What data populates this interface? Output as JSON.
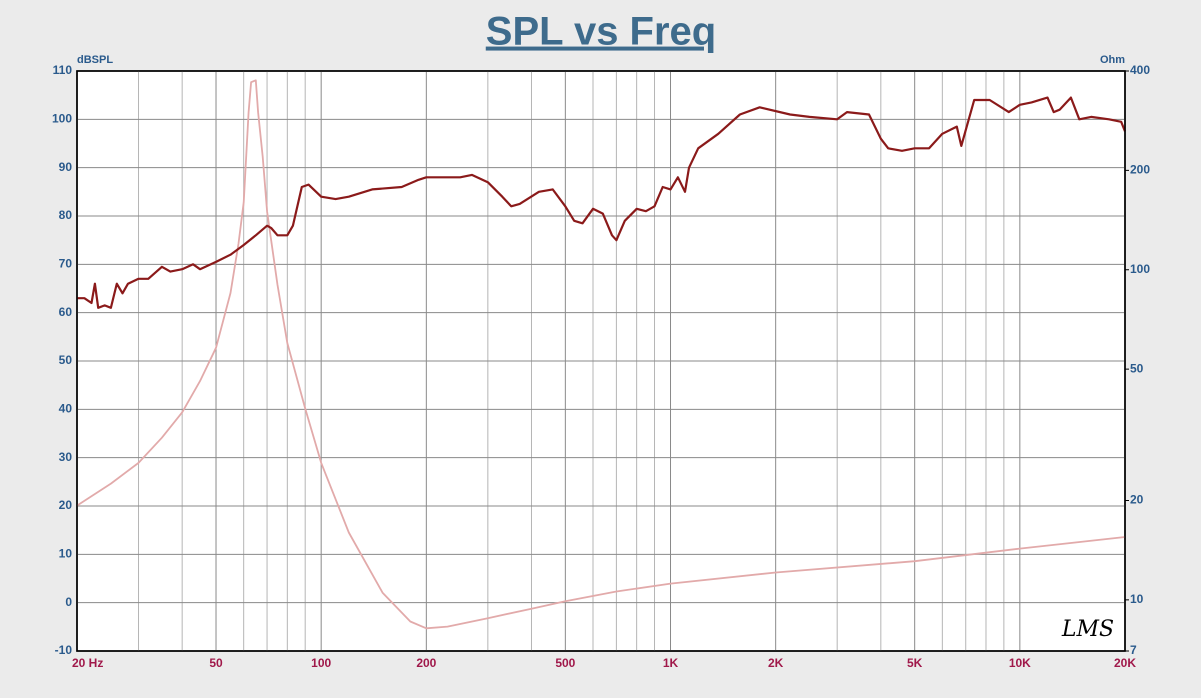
{
  "chart_data": {
    "type": "line",
    "title": "SPL vs Freq",
    "y_label": "dBSPL",
    "y2_label": "Ohm",
    "annotation": "LMS",
    "xscale": "log",
    "y2scale": "log",
    "grid": true,
    "xlim": [
      20,
      20000
    ],
    "xticks": [
      {
        "value": 20,
        "label": "20  Hz"
      },
      50,
      100,
      200,
      500,
      {
        "value": 1000,
        "label": "1K"
      },
      {
        "value": 2000,
        "label": "2K"
      },
      {
        "value": 5000,
        "label": "5K"
      },
      {
        "value": 10000,
        "label": "10K"
      },
      {
        "value": 20000,
        "label": "20K"
      }
    ],
    "xminorticks": [
      30,
      40,
      60,
      70,
      80,
      90,
      300,
      400,
      600,
      700,
      800,
      900,
      3000,
      4000,
      6000,
      7000,
      8000,
      9000
    ],
    "ylim": [
      -10,
      110
    ],
    "yticks": [
      -10,
      0,
      10,
      20,
      30,
      40,
      50,
      60,
      70,
      80,
      90,
      100,
      110
    ],
    "y2lim": [
      7,
      400
    ],
    "y2ticks": [
      7,
      10,
      20,
      50,
      100,
      200,
      400
    ],
    "series": [
      {
        "color": "#e2aaaa",
        "axis": "y2",
        "x": [
          20,
          25,
          30,
          35,
          40,
          45,
          50,
          55,
          58,
          60,
          62,
          63,
          65,
          66,
          68,
          70,
          75,
          80,
          90,
          100,
          120,
          150,
          180,
          200,
          230,
          300,
          400,
          500,
          700,
          1000,
          2000,
          5000,
          10000,
          20000
        ],
        "values": [
          19.3,
          22.5,
          26,
          31,
          37,
          46,
          58,
          85,
          120,
          160,
          300,
          370,
          375,
          300,
          220,
          150,
          90,
          60,
          38,
          26,
          16,
          10.5,
          8.6,
          8.2,
          8.3,
          8.8,
          9.4,
          9.9,
          10.6,
          11.2,
          12.1,
          13.1,
          14.3,
          15.5
        ]
      },
      {
        "color": "#8b1a1a",
        "axis": "y",
        "x": [
          20,
          21,
          22,
          22.5,
          23,
          24,
          25,
          26,
          27,
          28,
          30,
          32,
          35,
          37,
          40,
          43,
          45,
          50,
          55,
          60,
          65,
          70,
          72,
          75,
          80,
          83,
          88,
          92,
          100,
          110,
          120,
          140,
          170,
          190,
          200,
          230,
          250,
          270,
          300,
          330,
          350,
          370,
          420,
          460,
          500,
          530,
          560,
          600,
          640,
          680,
          700,
          740,
          800,
          850,
          900,
          950,
          1000,
          1050,
          1100,
          1130,
          1200,
          1370,
          1580,
          1800,
          2200,
          2500,
          3000,
          3200,
          3700,
          4000,
          4200,
          4600,
          5000,
          5500,
          6000,
          6600,
          6800,
          7400,
          8200,
          9300,
          10000,
          10800,
          12000,
          12500,
          13000,
          14000,
          14800,
          16000,
          18000,
          19500,
          20000
        ],
        "values": [
          63,
          63,
          62,
          66,
          61,
          61.5,
          61,
          66,
          64,
          66,
          67,
          67,
          69.5,
          68.5,
          69,
          70,
          69,
          70.5,
          72,
          74,
          76,
          78,
          77.5,
          76,
          76,
          78,
          86,
          86.5,
          84,
          83.5,
          84,
          85.5,
          86,
          87.5,
          88,
          88,
          88,
          88.5,
          87,
          84,
          82,
          82.5,
          85,
          85.5,
          82,
          79,
          78.5,
          81.5,
          80.5,
          76,
          75,
          79,
          81.5,
          81,
          82,
          86,
          85.5,
          88,
          85,
          90,
          94,
          97,
          101,
          102.5,
          101,
          100.5,
          100,
          101.5,
          101,
          96,
          94,
          93.5,
          94,
          94,
          97,
          98.5,
          94.5,
          104,
          104,
          101.5,
          103,
          103.5,
          104.5,
          101.5,
          102,
          104.5,
          100,
          100.5,
          100,
          99.5,
          97.5
        ]
      }
    ]
  }
}
